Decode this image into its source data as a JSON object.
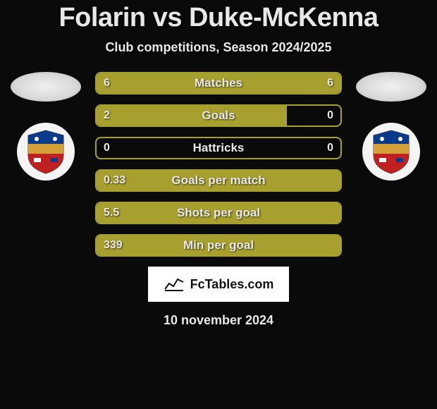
{
  "title": "Folarin vs Duke-McKenna",
  "subtitle": "Club competitions, Season 2024/2025",
  "date": "10 november 2024",
  "watermark_text": "FcTables.com",
  "colors": {
    "bar_fill": "#a8a02e",
    "bar_border": "#a8a02e",
    "background": "#0a0a0a",
    "text": "#e8e8e8"
  },
  "players": {
    "left": {
      "name": "Folarin"
    },
    "right": {
      "name": "Duke-McKenna"
    }
  },
  "stats": [
    {
      "label": "Matches",
      "left_val": "6",
      "right_val": "6",
      "left_fill_pct": 50,
      "right_fill_pct": 50
    },
    {
      "label": "Goals",
      "left_val": "2",
      "right_val": "0",
      "left_fill_pct": 78,
      "right_fill_pct": 0
    },
    {
      "label": "Hattricks",
      "left_val": "0",
      "right_val": "0",
      "left_fill_pct": 0,
      "right_fill_pct": 0
    },
    {
      "label": "Goals per match",
      "left_val": "0.33",
      "right_val": "",
      "left_fill_pct": 100,
      "right_fill_pct": 0
    },
    {
      "label": "Shots per goal",
      "left_val": "5.5",
      "right_val": "",
      "left_fill_pct": 100,
      "right_fill_pct": 0
    },
    {
      "label": "Min per goal",
      "left_val": "339",
      "right_val": "",
      "left_fill_pct": 100,
      "right_fill_pct": 0
    }
  ]
}
